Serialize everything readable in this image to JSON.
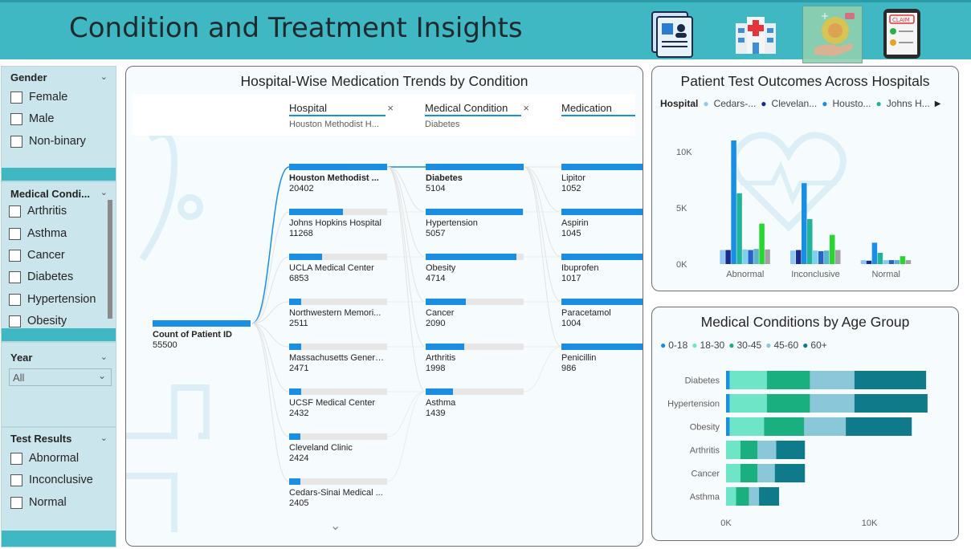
{
  "header": {
    "title": "Condition and Treatment Insights",
    "nav_icons": [
      "patient-record-icon",
      "hospital-icon",
      "treatment-icon",
      "claim-icon"
    ]
  },
  "slicers": {
    "gender": {
      "title": "Gender",
      "options": [
        "Female",
        "Male",
        "Non-binary"
      ]
    },
    "medical_condition": {
      "title": "Medical Condi...",
      "options": [
        "Arthritis",
        "Asthma",
        "Cancer",
        "Diabetes",
        "Hypertension",
        "Obesity"
      ]
    },
    "year": {
      "title": "Year",
      "value": "All"
    },
    "test_results": {
      "title": "Test Results",
      "options": [
        "Abnormal",
        "Inconclusive",
        "Normal"
      ]
    }
  },
  "decomp": {
    "title": "Hospital-Wise Medication Trends by Condition",
    "columns": [
      {
        "name": "Hospital",
        "selected": "Houston Methodist H...",
        "has_close": true
      },
      {
        "name": "Medical Condition",
        "selected": "Diabetes",
        "has_close": true
      },
      {
        "name": "Medication",
        "selected": "",
        "has_close": false
      }
    ],
    "root": {
      "label": "Count of Patient ID",
      "value": "55500"
    },
    "hospitals": [
      {
        "label": "Houston Methodist ...",
        "value": "20402",
        "v": 20402,
        "selected": true
      },
      {
        "label": "Johns Hopkins Hospital",
        "value": "11268",
        "v": 11268
      },
      {
        "label": "UCLA Medical Center",
        "value": "6853",
        "v": 6853
      },
      {
        "label": "Northwestern Memori...",
        "value": "2511",
        "v": 2511
      },
      {
        "label": "Massachusetts General...",
        "value": "2471",
        "v": 2471
      },
      {
        "label": "UCSF Medical Center",
        "value": "2432",
        "v": 2432
      },
      {
        "label": "Cleveland Clinic",
        "value": "2424",
        "v": 2424
      },
      {
        "label": "Cedars-Sinai Medical ...",
        "value": "2405",
        "v": 2405
      }
    ],
    "conditions": [
      {
        "label": "Diabetes",
        "value": "5104",
        "v": 5104,
        "selected": true
      },
      {
        "label": "Hypertension",
        "value": "5057",
        "v": 5057
      },
      {
        "label": "Obesity",
        "value": "4714",
        "v": 4714
      },
      {
        "label": "Cancer",
        "value": "2090",
        "v": 2090
      },
      {
        "label": "Arthritis",
        "value": "1998",
        "v": 1998
      },
      {
        "label": "Asthma",
        "value": "1439",
        "v": 1439
      }
    ],
    "medications": [
      {
        "label": "Lipitor",
        "value": "1052",
        "v": 1052
      },
      {
        "label": "Aspirin",
        "value": "1045",
        "v": 1045
      },
      {
        "label": "Ibuprofen",
        "value": "1017",
        "v": 1017
      },
      {
        "label": "Paracetamol",
        "value": "1004",
        "v": 1004
      },
      {
        "label": "Penicillin",
        "value": "986",
        "v": 986
      }
    ]
  },
  "chart_data": [
    {
      "type": "bar",
      "title": "Patient Test Outcomes Across Hospitals",
      "legend_title": "Hospital",
      "legend_items": [
        "Cedars-...",
        "Clevelan...",
        "Housto...",
        "Johns H..."
      ],
      "categories": [
        "Abnormal",
        "Inconclusive",
        "Normal"
      ],
      "series": [
        {
          "name": "Cedars-...",
          "color": "#8fc6f3",
          "values": [
            1250,
            1200,
            350
          ]
        },
        {
          "name": "Clevelan...",
          "color": "#1a2a8c",
          "values": [
            1250,
            1250,
            300
          ]
        },
        {
          "name": "Housto...",
          "color": "#1a8ee3",
          "values": [
            11000,
            7200,
            1900
          ]
        },
        {
          "name": "Johns H...",
          "color": "#20b49a",
          "values": [
            6300,
            4000,
            1000
          ]
        },
        {
          "name": "",
          "color": "#7fd0ee",
          "values": [
            1300,
            1200,
            350
          ]
        },
        {
          "name": "",
          "color": "#2563c9",
          "values": [
            1250,
            1150,
            350
          ]
        },
        {
          "name": "",
          "color": "#5bb5c8",
          "values": [
            1350,
            1200,
            350
          ]
        },
        {
          "name": "",
          "color": "#29d631",
          "values": [
            3600,
            2600,
            700
          ]
        },
        {
          "name": "",
          "color": "#a0a0a0",
          "values": [
            1300,
            1250,
            350
          ]
        }
      ],
      "yticks": [
        "0K",
        "5K",
        "10K"
      ],
      "ylim": [
        0,
        12000
      ],
      "legend_position": "top-left"
    },
    {
      "type": "bar",
      "orientation": "horizontal",
      "stacked": true,
      "title": "Medical Conditions by Age Group",
      "categories": [
        "Diabetes",
        "Hypertension",
        "Obesity",
        "Arthritis",
        "Cancer",
        "Asthma"
      ],
      "series": [
        {
          "name": "0-18",
          "color": "#1a8ee3",
          "values": [
            250,
            250,
            250,
            0,
            0,
            0
          ]
        },
        {
          "name": "18-30",
          "color": "#6fe5c8",
          "values": [
            2600,
            2600,
            2400,
            1000,
            1000,
            700
          ]
        },
        {
          "name": "30-45",
          "color": "#1aaf7f",
          "values": [
            3000,
            3000,
            2800,
            1200,
            1200,
            900
          ]
        },
        {
          "name": "45-60",
          "color": "#8ac7d8",
          "values": [
            3100,
            3100,
            2900,
            1300,
            1200,
            700
          ]
        },
        {
          "name": "60+",
          "color": "#0f7a8a",
          "values": [
            5000,
            5100,
            4600,
            2000,
            2100,
            1400
          ]
        }
      ],
      "xticks": [
        "0K",
        "10K"
      ],
      "xlim": [
        0,
        14000
      ],
      "legend_position": "top-left"
    }
  ]
}
